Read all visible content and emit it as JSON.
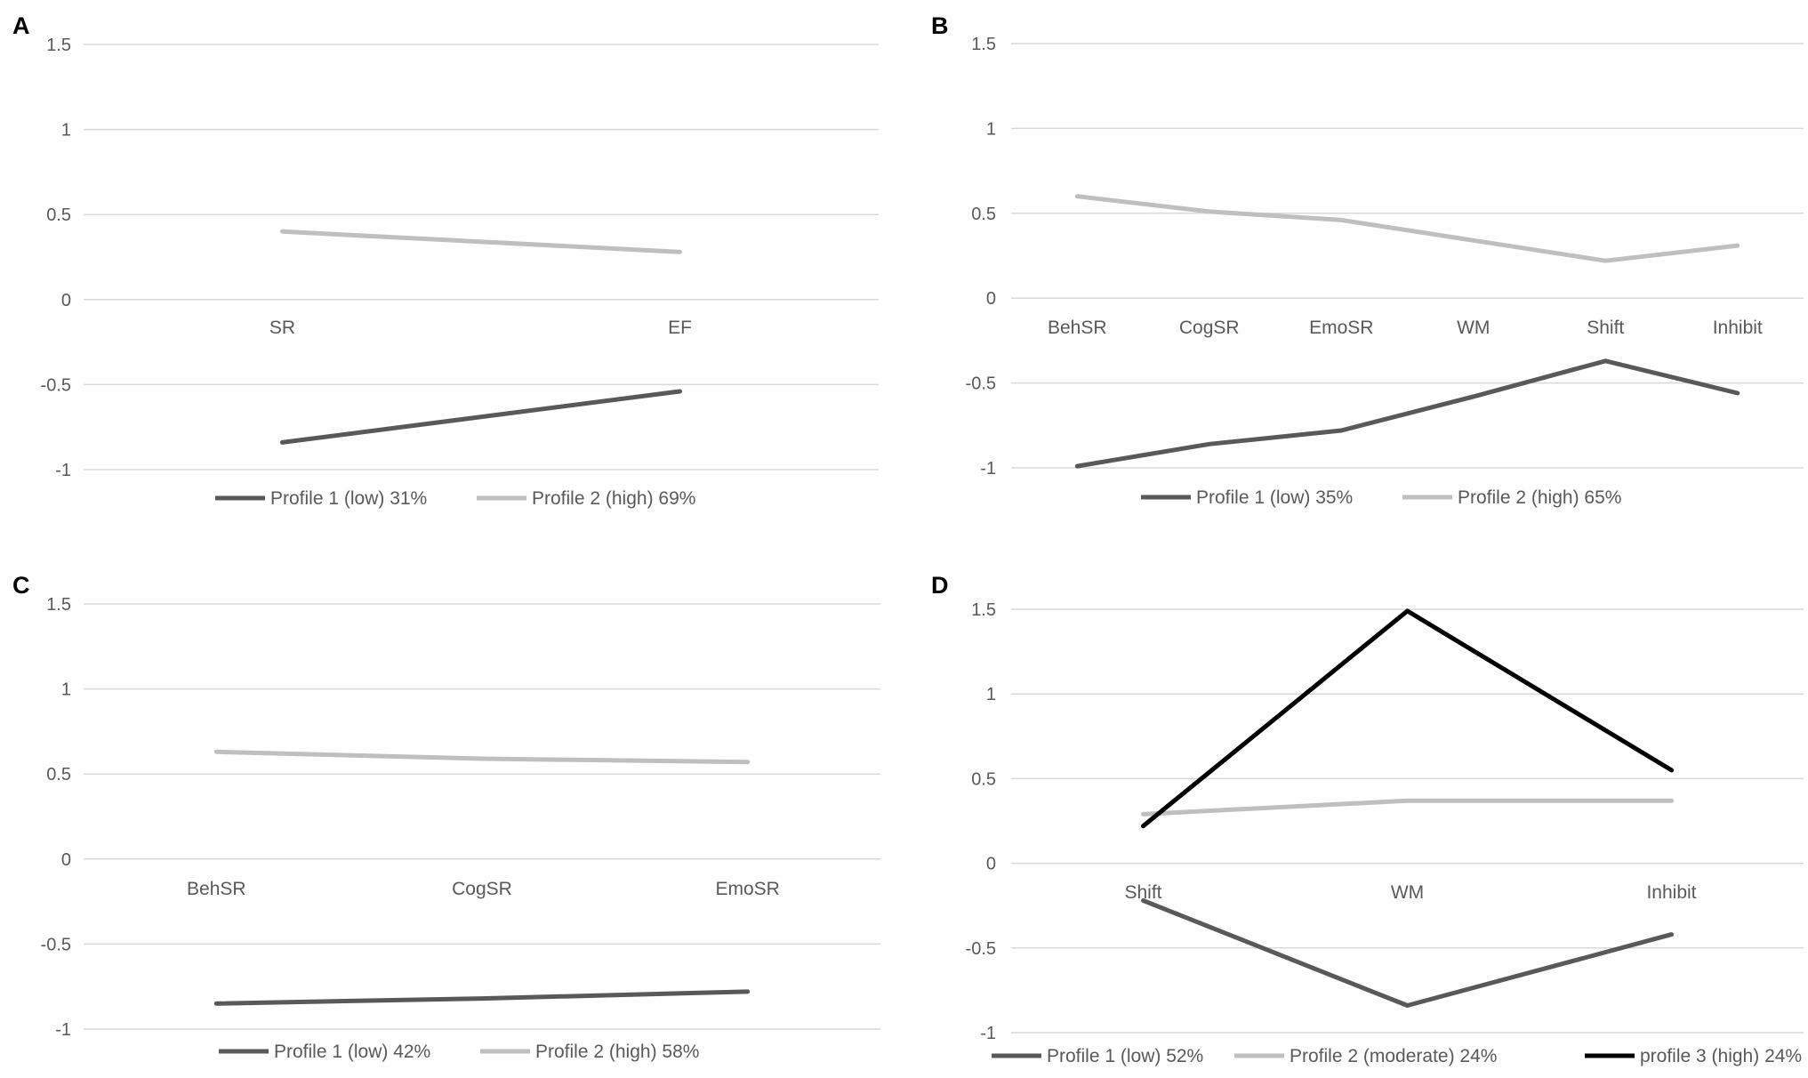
{
  "chart_data": [
    {
      "panel": "A",
      "type": "line",
      "categories": [
        "SR",
        "EF"
      ],
      "ylim": [
        -1,
        1.5
      ],
      "yticks": [
        "1.5",
        "1",
        "0.5",
        "0",
        "-0.5",
        "-1"
      ],
      "series": [
        {
          "name": "Profile 1 (low) 31%",
          "color": "#595959",
          "values": [
            -0.84,
            -0.54
          ]
        },
        {
          "name": "Profile 2 (high) 69%",
          "color": "#bfbfbf",
          "values": [
            0.4,
            0.28
          ]
        }
      ]
    },
    {
      "panel": "B",
      "type": "line",
      "categories": [
        "BehSR",
        "CogSR",
        "EmoSR",
        "WM",
        "Shift",
        "Inhibit"
      ],
      "ylim": [
        -1,
        1.5
      ],
      "yticks": [
        "1.5",
        "1",
        "0.5",
        "0",
        "-0.5",
        "-1"
      ],
      "series": [
        {
          "name": "Profile 1 (low) 35%",
          "color": "#595959",
          "values": [
            -0.99,
            -0.86,
            -0.78,
            -0.58,
            -0.37,
            -0.56
          ]
        },
        {
          "name": "Profile 2 (high) 65%",
          "color": "#bfbfbf",
          "values": [
            0.6,
            0.51,
            0.46,
            0.34,
            0.22,
            0.31
          ]
        }
      ]
    },
    {
      "panel": "C",
      "type": "line",
      "categories": [
        "BehSR",
        "CogSR",
        "EmoSR"
      ],
      "ylim": [
        -1,
        1.5
      ],
      "yticks": [
        "1.5",
        "1",
        "0.5",
        "0",
        "-0.5",
        "-1"
      ],
      "series": [
        {
          "name": "Profile 1 (low) 42%",
          "color": "#595959",
          "values": [
            -0.85,
            -0.82,
            -0.78
          ]
        },
        {
          "name": "Profile 2 (high) 58%",
          "color": "#bfbfbf",
          "values": [
            0.63,
            0.59,
            0.57
          ]
        }
      ]
    },
    {
      "panel": "D",
      "type": "line",
      "categories": [
        "Shift",
        "WM",
        "Inhibit"
      ],
      "ylim": [
        -1,
        1.5
      ],
      "yticks": [
        "1.5",
        "1",
        "0.5",
        "0",
        "-0.5",
        "-1"
      ],
      "series": [
        {
          "name": "Profile 1 (low) 52%",
          "color": "#595959",
          "values": [
            -0.22,
            -0.84,
            -0.42
          ]
        },
        {
          "name": "Profile 2 (moderate) 24%",
          "color": "#bfbfbf",
          "values": [
            0.29,
            0.37,
            0.37
          ]
        },
        {
          "name": "profile 3 (high) 24%",
          "color": "#000000",
          "values": [
            0.22,
            1.49,
            0.55
          ]
        }
      ]
    }
  ]
}
